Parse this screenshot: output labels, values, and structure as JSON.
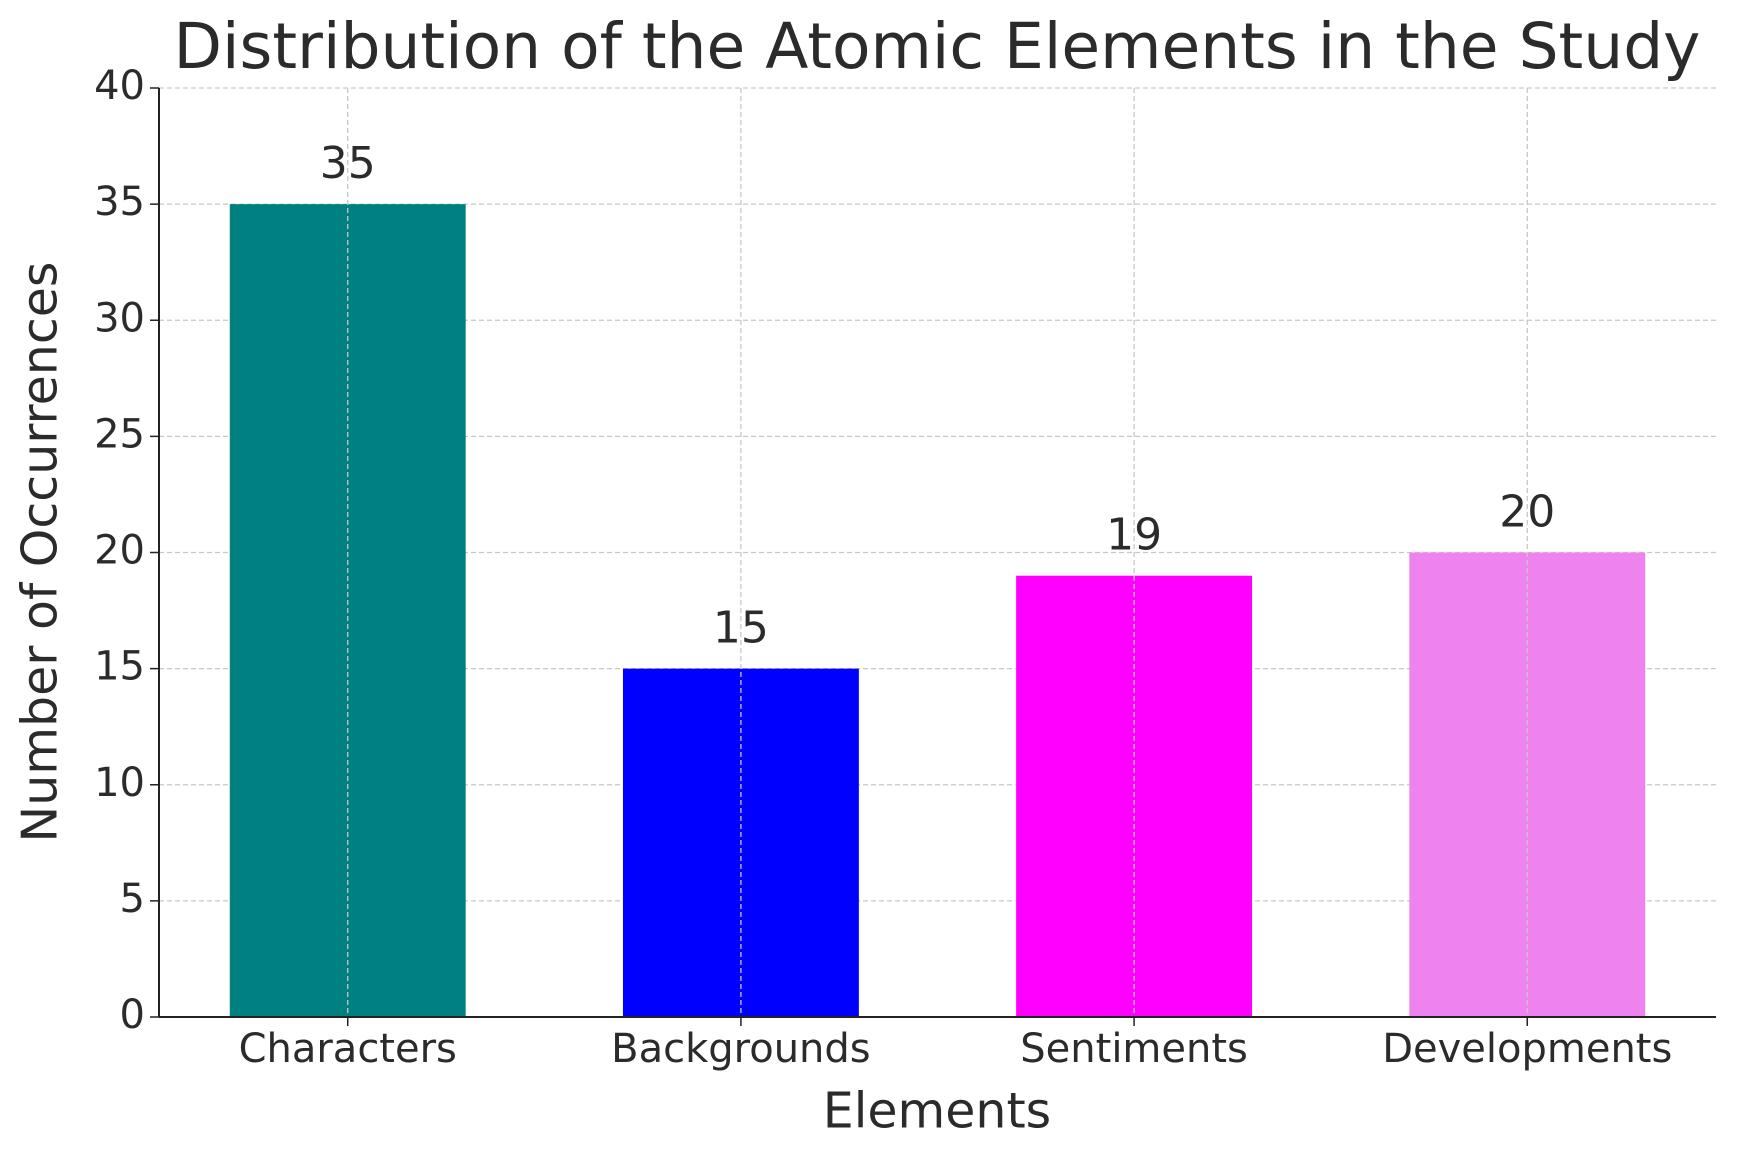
{
  "chart_data": {
    "type": "bar",
    "title": "Distribution of the Atomic Elements in the Study",
    "x_label": "Elements",
    "y_label": "Number of Occurrences",
    "categories": [
      "Characters",
      "Backgrounds",
      "Sentiments",
      "Developments"
    ],
    "values": [
      35,
      15,
      19,
      20
    ],
    "colors": [
      "#008080",
      "#0000ff",
      "#ff00ff",
      "#ee82ee"
    ],
    "ylim": [
      0,
      40
    ],
    "yticks": [
      0,
      5,
      10,
      15,
      20,
      25,
      30,
      35,
      40
    ],
    "grid": true
  }
}
